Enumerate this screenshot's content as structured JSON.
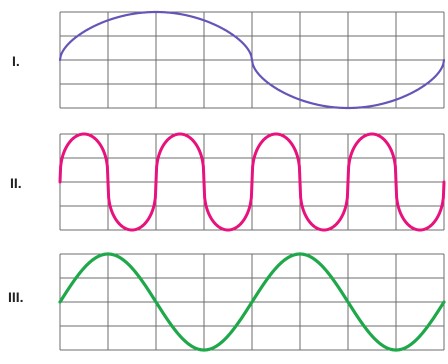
{
  "panels": [
    {
      "label": "I.",
      "color": "#6655b8",
      "cycles": 1,
      "shape": "rounded-sine",
      "amplitude": 1.0
    },
    {
      "label": "II.",
      "color": "#e8127d",
      "cycles": 4,
      "shape": "rounded-square",
      "amplitude": 1.0
    },
    {
      "label": "III.",
      "color": "#1fa84a",
      "cycles": 2,
      "shape": "sine",
      "amplitude": 1.0
    }
  ]
}
